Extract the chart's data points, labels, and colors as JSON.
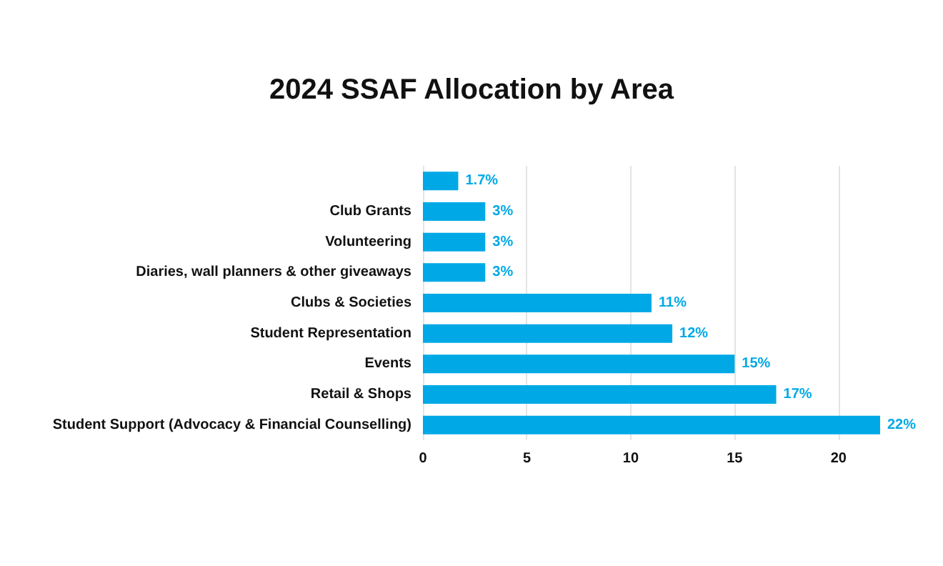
{
  "chart_data": {
    "type": "bar",
    "orientation": "horizontal",
    "title": "2024 SSAF Allocation by Area",
    "categories": [
      null,
      "Club Grants",
      "Volunteering",
      "Diaries, wall planners & other giveaways",
      "Clubs & Societies",
      "Student Representation",
      "Events",
      "Retail & Shops",
      "Student Support (Advocacy & Financial Counselling)"
    ],
    "values": [
      1.7,
      3,
      3,
      3,
      11,
      12,
      15,
      17,
      22
    ],
    "value_labels": [
      "1.7%",
      "3%",
      "3%",
      "3%",
      "11%",
      "12%",
      "15%",
      "17%",
      "22%"
    ],
    "color": "#00a9e6",
    "xlim": [
      0,
      22
    ],
    "xticks": [
      0,
      5,
      10,
      15,
      20
    ],
    "grid": "x"
  }
}
